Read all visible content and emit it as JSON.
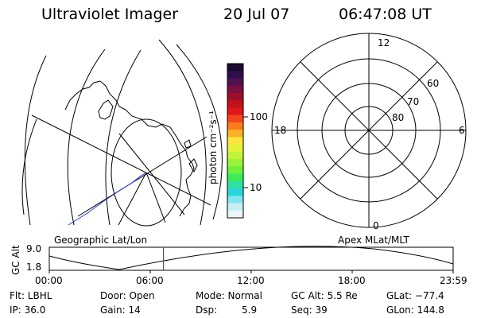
{
  "header": {
    "instrument": "Ultraviolet Imager",
    "date": "20 Jul 07",
    "time": "06:47:08 UT"
  },
  "colorbar": {
    "unit_label": "photon cm⁻²s⁻¹",
    "tick_100": "100",
    "tick_10": "10",
    "colors_top_to_bottom": [
      "#1a0b2e",
      "#2f0e4b",
      "#52104f",
      "#7a0f42",
      "#9c0f2a",
      "#c1121b",
      "#e0171a",
      "#f2451f",
      "#f97c1f",
      "#fbb127",
      "#fbe63d",
      "#e6f23a",
      "#c3f23a",
      "#9bf23a",
      "#6ef03c",
      "#41ea5a",
      "#2fe0a0",
      "#2bd4d8",
      "#7fe5ee",
      "#c8eef2",
      "#e9f5f6"
    ]
  },
  "labels": {
    "geo": "Geographic Lat/Lon",
    "apex": "Apex MLat/MLT"
  },
  "polar": {
    "mlt_top": "12",
    "mlt_left": "18",
    "mlt_right": "6",
    "mlt_bottom": "0",
    "lat_60": "60",
    "lat_70": "70",
    "lat_80": "80"
  },
  "timeline": {
    "axis_title": "GC Alt",
    "y_top": "9.0",
    "y_bottom": "1.8",
    "x_ticks": [
      "00:00",
      "06:00",
      "12:00",
      "18:00",
      "23:59"
    ],
    "current_time_fraction": 0.2827
  },
  "info": {
    "flt": "Flt: LBHL",
    "ip": "IP: 36.0",
    "door": "Door: Open",
    "gain": "Gain: 14",
    "mode": "Mode: Normal",
    "dsp_label": "Dsp:",
    "dsp_value": "5.9",
    "gc_alt": "GC Alt: 5.5 Re",
    "seq": "Seq: 39",
    "glat": "GLat: −77.4",
    "glon": "GLon: 144.8"
  }
}
